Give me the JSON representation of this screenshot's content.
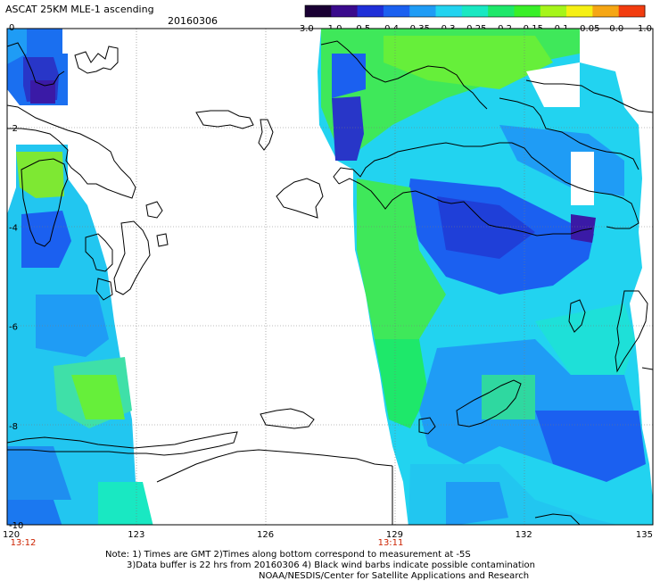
{
  "header": {
    "title": "ASCAT 25KM MLE-1 ascending",
    "date": "20160306"
  },
  "colorbar": {
    "labels": [
      "-3.0",
      "-1.0",
      "-0.5",
      "-0.4",
      "-0.35",
      "-0.3",
      "-0.25",
      "-0.2",
      "-0.15",
      "-0.1",
      "-0.05",
      "0.0",
      "1.0"
    ],
    "colors": [
      "#1a0033",
      "#3a0a8c",
      "#1f2fd8",
      "#1b60f0",
      "#1f9cf5",
      "#22d3f0",
      "#19e8c2",
      "#1ee86a",
      "#39ef28",
      "#a6f51a",
      "#f5f014",
      "#f5a614",
      "#f23c0f"
    ]
  },
  "axes": {
    "x_ticks": [
      "120",
      "123",
      "126",
      "129",
      "132",
      "135"
    ],
    "y_ticks": [
      "0",
      "-2",
      "-4",
      "-6",
      "-8",
      "-10"
    ],
    "times": [
      "13:12",
      "13:11"
    ]
  },
  "notes": {
    "line1": "Note: 1) Times are GMT 2)Times along bottom correspond to measurement at -5S",
    "line2": "3)Data buffer is 22 hrs from 20160306 4) Black wind barbs indicate possible contamination",
    "line3": "NOAA/NESDIS/Center for Satellite Applications and Research"
  }
}
